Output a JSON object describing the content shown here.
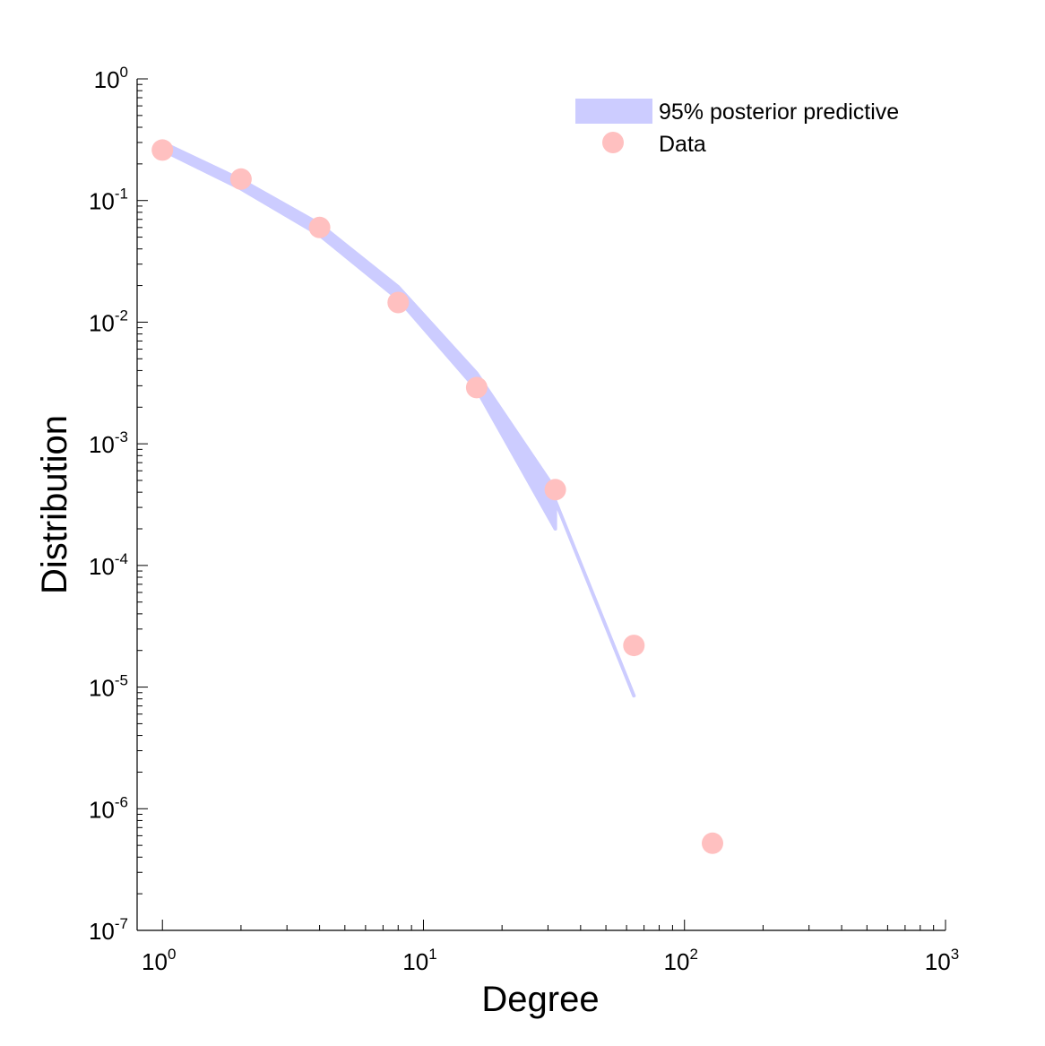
{
  "chart_data": {
    "type": "scatter",
    "title": "",
    "xlabel": "Degree",
    "ylabel": "Distribution",
    "xscale": "log",
    "yscale": "log",
    "xlim": [
      0.8,
      1000
    ],
    "ylim": [
      1e-07,
      1
    ],
    "grid": false,
    "legend_position": "top-right",
    "x_ticks": [
      {
        "value": 1,
        "base": "10",
        "exp": "0"
      },
      {
        "value": 10,
        "base": "10",
        "exp": "1"
      },
      {
        "value": 100,
        "base": "10",
        "exp": "2"
      },
      {
        "value": 1000,
        "base": "10",
        "exp": "3"
      }
    ],
    "y_ticks": [
      {
        "value": 1,
        "base": "10",
        "exp": "0"
      },
      {
        "value": 0.1,
        "base": "10",
        "exp": "-1"
      },
      {
        "value": 0.01,
        "base": "10",
        "exp": "-2"
      },
      {
        "value": 0.001,
        "base": "10",
        "exp": "-3"
      },
      {
        "value": 0.0001,
        "base": "10",
        "exp": "-4"
      },
      {
        "value": 1e-05,
        "base": "10",
        "exp": "-5"
      },
      {
        "value": 1e-06,
        "base": "10",
        "exp": "-6"
      },
      {
        "value": 1e-07,
        "base": "10",
        "exp": "-7"
      }
    ],
    "series": [
      {
        "name": "95% posterior predictive",
        "kind": "band",
        "color": "#ccccff",
        "x": [
          1,
          2,
          4,
          8,
          16,
          32,
          32,
          64
        ],
        "lower": [
          0.26,
          0.125,
          0.052,
          0.0155,
          0.0028,
          0.0002,
          0.00034,
          8.5e-06
        ],
        "upper": [
          0.3,
          0.148,
          0.064,
          0.0195,
          0.0038,
          0.00042,
          0.00034,
          8.5e-06
        ]
      },
      {
        "name": "Data",
        "kind": "points",
        "color": "#ffc0c0",
        "x": [
          1,
          2,
          4,
          8,
          16,
          32,
          64,
          128
        ],
        "y": [
          0.26,
          0.15,
          0.06,
          0.0145,
          0.0029,
          0.00042,
          2.2e-05,
          5.2e-07
        ]
      }
    ]
  }
}
